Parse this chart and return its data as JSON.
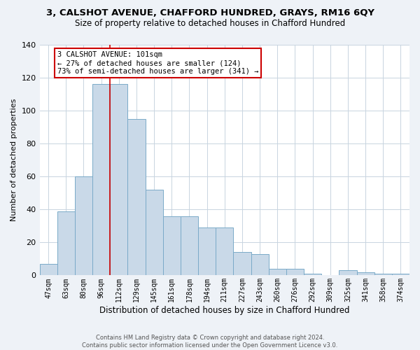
{
  "title": "3, CALSHOT AVENUE, CHAFFORD HUNDRED, GRAYS, RM16 6QY",
  "subtitle": "Size of property relative to detached houses in Chafford Hundred",
  "xlabel": "Distribution of detached houses by size in Chafford Hundred",
  "ylabel": "Number of detached properties",
  "bins": [
    "47sqm",
    "63sqm",
    "80sqm",
    "96sqm",
    "112sqm",
    "129sqm",
    "145sqm",
    "161sqm",
    "178sqm",
    "194sqm",
    "211sqm",
    "227sqm",
    "243sqm",
    "260sqm",
    "276sqm",
    "292sqm",
    "309sqm",
    "325sqm",
    "341sqm",
    "358sqm",
    "374sqm"
  ],
  "values": [
    7,
    39,
    60,
    116,
    116,
    95,
    52,
    36,
    36,
    29,
    29,
    14,
    13,
    4,
    4,
    1,
    0,
    3,
    2,
    1,
    1
  ],
  "bar_color": "#c9d9e8",
  "bar_edge_color": "#7aaac8",
  "marker_line_color": "#cc0000",
  "annotation_text": "3 CALSHOT AVENUE: 101sqm\n← 27% of detached houses are smaller (124)\n73% of semi-detached houses are larger (341) →",
  "annotation_box_color": "#ffffff",
  "annotation_box_edge": "#cc0000",
  "ylim": [
    0,
    140
  ],
  "yticks": [
    0,
    20,
    40,
    60,
    80,
    100,
    120,
    140
  ],
  "footer": "Contains HM Land Registry data © Crown copyright and database right 2024.\nContains public sector information licensed under the Open Government Licence v3.0.",
  "bg_color": "#eef2f7",
  "plot_bg_color": "#ffffff",
  "grid_color": "#c8d4e0",
  "title_fontsize": 9.5,
  "subtitle_fontsize": 8.5,
  "ylabel_fontsize": 8,
  "xlabel_fontsize": 8.5,
  "tick_fontsize": 7,
  "annotation_fontsize": 7.5,
  "footer_fontsize": 6
}
